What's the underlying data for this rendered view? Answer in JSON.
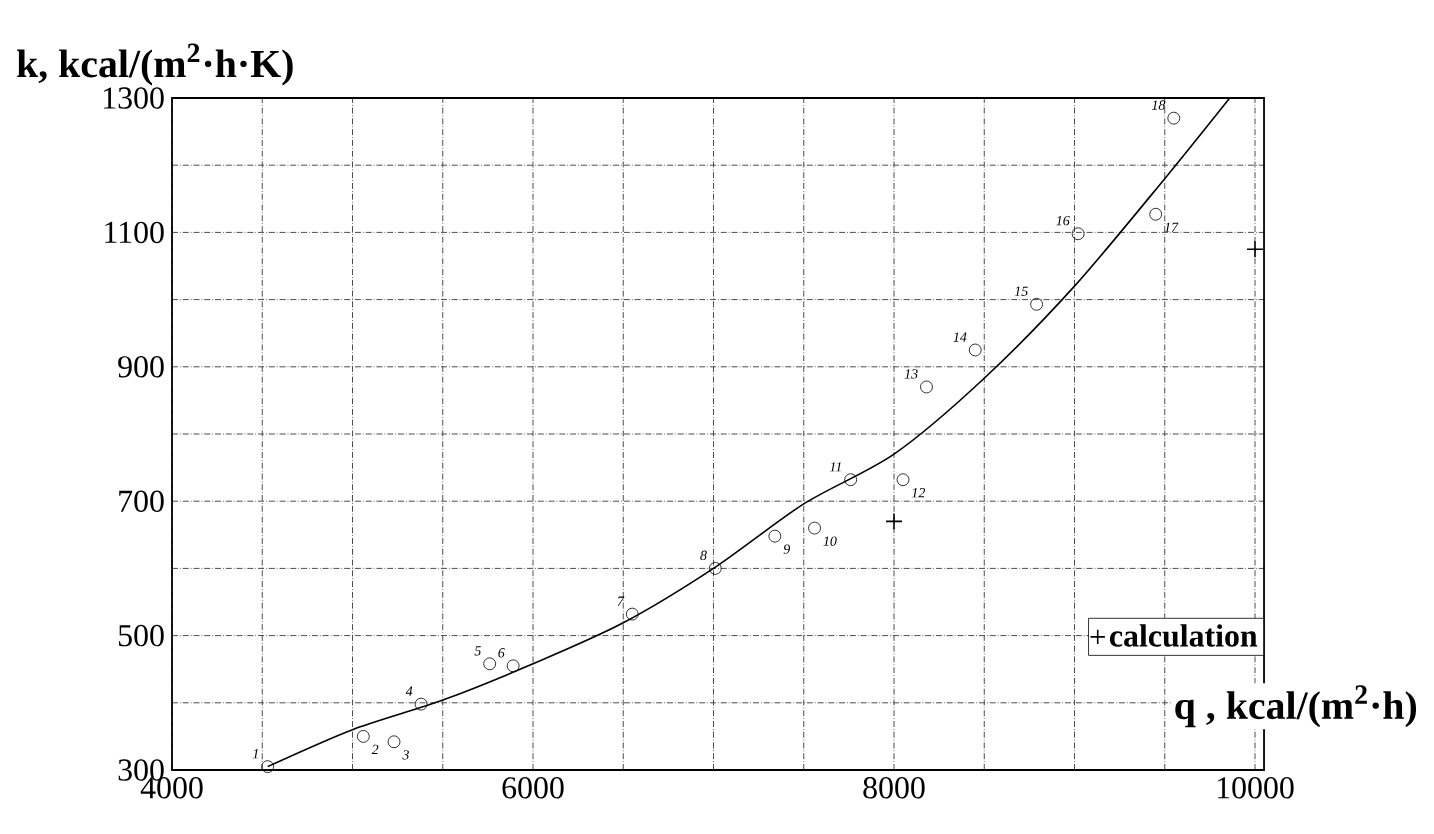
{
  "chart_data": {
    "type": "scatter",
    "xlabel": "q , kcal/(m$^{2}$·h)",
    "ylabel": "k, kcal/(m$^{2}$·h·K)",
    "xlim": [
      4000,
      10050
    ],
    "ylim": [
      300,
      1300
    ],
    "xticks": [
      4000,
      {
        "value": 4500,
        "label": null
      },
      {
        "value": 5000,
        "label": null
      },
      {
        "value": 5500,
        "label": null
      },
      6000,
      {
        "value": 6500,
        "label": null
      },
      {
        "value": 7000,
        "label": null
      },
      {
        "value": 7500,
        "label": null
      },
      8000,
      {
        "value": 8500,
        "label": null
      },
      {
        "value": 9000,
        "label": null
      },
      {
        "value": 9500,
        "label": null
      },
      10000
    ],
    "yticks": [
      300,
      {
        "value": 400,
        "label": null
      },
      500,
      {
        "value": 600,
        "label": null
      },
      700,
      {
        "value": 800,
        "label": null
      },
      900,
      {
        "value": 1000,
        "label": null
      },
      1100,
      {
        "value": 1200,
        "label": null
      },
      1300
    ],
    "grid": true,
    "legend": "bottom right",
    "series": [
      {
        "type": "line",
        "color": "#000000",
        "marker": "none",
        "x": [
          4530,
          5000,
          5500,
          6000,
          6500,
          7000,
          7500,
          8000,
          8500,
          9000,
          9500,
          9860
        ],
        "values": [
          305,
          360,
          404,
          458,
          519,
          600,
          696,
          770,
          883,
          1020,
          1180,
          1300
        ]
      },
      {
        "color": "#000000",
        "marker": "circle",
        "x": [
          4530,
          5060,
          5230,
          5380,
          5760,
          5890,
          6550,
          7010,
          7340,
          7560,
          7760,
          8050,
          8180,
          8450,
          8790,
          9020,
          9450,
          9550
        ],
        "values": [
          305,
          350,
          342,
          398,
          458,
          455,
          532,
          600,
          648,
          660,
          732,
          732,
          870,
          925,
          993,
          1098,
          1127,
          1270
        ]
      },
      {
        "type": "scatter",
        "name": "calculation",
        "color": "#000000",
        "marker": "cross",
        "x": [
          8000,
          10000
        ],
        "values": [
          670,
          1075
        ]
      }
    ],
    "annotations": [
      {
        "text": "1",
        "x": 4530,
        "y": 305
      },
      {
        "text": "2",
        "x": 5060,
        "y": 350
      },
      {
        "text": "3",
        "x": 5230,
        "y": 342
      },
      {
        "text": "4",
        "x": 5380,
        "y": 398
      },
      {
        "text": "5",
        "x": 5760,
        "y": 458
      },
      {
        "text": "6",
        "x": 5890,
        "y": 455
      },
      {
        "text": "7",
        "x": 6550,
        "y": 532
      },
      {
        "text": "8",
        "x": 7010,
        "y": 600
      },
      {
        "text": "9",
        "x": 7340,
        "y": 648
      },
      {
        "text": "10",
        "x": 7560,
        "y": 660
      },
      {
        "text": "11",
        "x": 7760,
        "y": 732
      },
      {
        "text": "12",
        "x": 8050,
        "y": 732
      },
      {
        "text": "13",
        "x": 8180,
        "y": 870
      },
      {
        "text": "14",
        "x": 8450,
        "y": 925
      },
      {
        "text": "15",
        "x": 8790,
        "y": 993
      },
      {
        "text": "16",
        "x": 9020,
        "y": 1098
      },
      {
        "text": "17",
        "x": 9450,
        "y": 1127
      },
      {
        "text": "18",
        "x": 9550,
        "y": 1270
      }
    ]
  }
}
